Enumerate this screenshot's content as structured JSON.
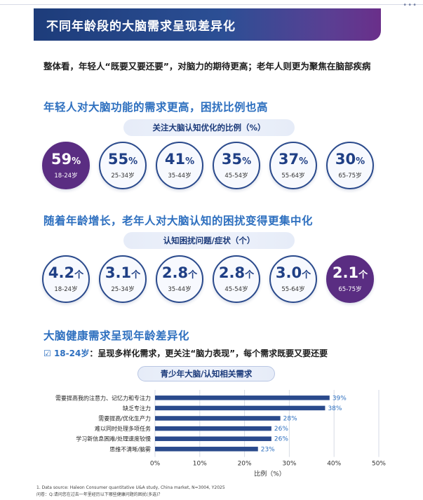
{
  "page": {
    "title": "不同年龄段的大脑需求呈现差异化",
    "summary": "整体看，年轻人“既要又要还要”，对脑力的期待更高；老年人则更为聚焦在脑部疾病",
    "footnote_source": "1. Data source: Haleon Consumer quantitative U&A study, China market, N=3004, Y2025",
    "footnote_question": "问卷：Q:请问您在过去一年里经历以下哪些健康问题的困扰(多选)？"
  },
  "section1": {
    "title": "年轻人对大脑功能的需求更高，困扰比例也高",
    "pill": "关注大脑认知优化的比例（%）",
    "unit": "%",
    "items": [
      {
        "value": "59",
        "age": "18-24岁",
        "highlight": true
      },
      {
        "value": "55",
        "age": "25-34岁",
        "highlight": false
      },
      {
        "value": "41",
        "age": "35-44岁",
        "highlight": false
      },
      {
        "value": "35",
        "age": "45-54岁",
        "highlight": false
      },
      {
        "value": "37",
        "age": "55-64岁",
        "highlight": false
      },
      {
        "value": "30",
        "age": "65-75岁",
        "highlight": false
      }
    ]
  },
  "section2": {
    "title": "随着年龄增长，老年人对大脑认知的困扰变得更集中化",
    "pill": "认知困扰问题/症状（个）",
    "unit": "个",
    "items": [
      {
        "value": "4.2",
        "age": "18-24岁",
        "highlight": false
      },
      {
        "value": "3.1",
        "age": "25-34岁",
        "highlight": false
      },
      {
        "value": "2.8",
        "age": "35-44岁",
        "highlight": false
      },
      {
        "value": "2.8",
        "age": "45-54岁",
        "highlight": false
      },
      {
        "value": "3.0",
        "age": "55-64岁",
        "highlight": false
      },
      {
        "value": "2.1",
        "age": "65-75岁",
        "highlight": true
      }
    ]
  },
  "section3": {
    "title": "大脑健康需求呈现年龄差异化",
    "checkbox": "☑",
    "lead": "18-24岁",
    "text": "：呈现多样化需求，更关注“脑力表现”，每个需求既要又要还要",
    "chart_pill": "青少年大脑/认知相关需求"
  },
  "chart_data": {
    "type": "bar",
    "orientation": "horizontal",
    "categories": [
      "需要提高我的注意力、记忆力和专注力",
      "缺乏专注力",
      "需要提高/优化生产力",
      "难以同时处理多项任务",
      "学习新信息困难/处理速度较慢",
      "思维不清晰/脑雾"
    ],
    "values": [
      39,
      38,
      28,
      26,
      26,
      23
    ],
    "value_labels": [
      "39%",
      "38%",
      "28%",
      "26%",
      "26%",
      "23%"
    ],
    "xlim": [
      0,
      50
    ],
    "xticks": [
      "0%",
      "10%",
      "20%",
      "30%",
      "40%",
      "50%"
    ],
    "xlabel": "比例（%）",
    "ylabel": "",
    "bar_color": "#2a4a8c",
    "label_color": "#2d6fbf",
    "grid": true
  }
}
